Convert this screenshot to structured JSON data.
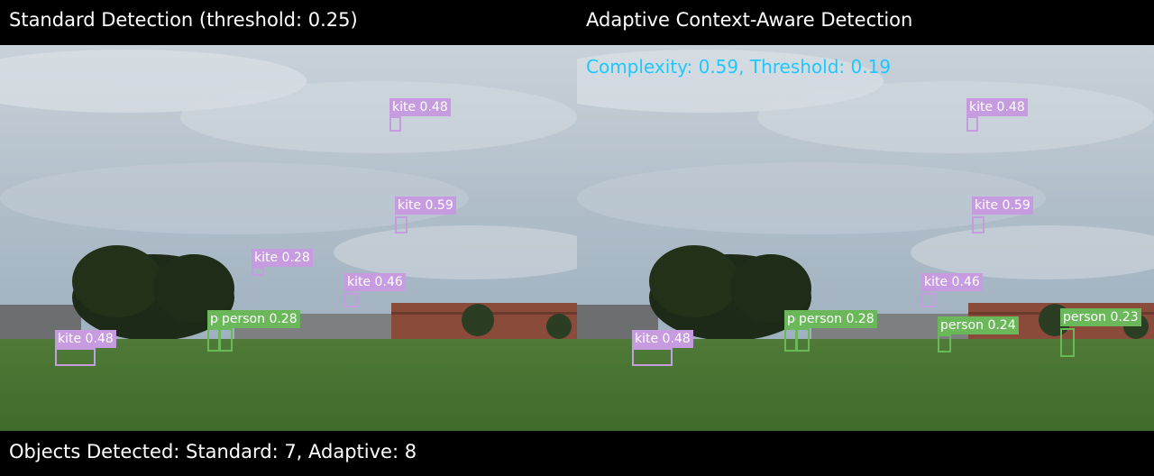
{
  "header": {
    "left_title": "Standard Detection (threshold: 0.25)",
    "right_title": "Adaptive Context-Aware Detection"
  },
  "adaptive_info": {
    "text": "Complexity: 0.59, Threshold: 0.19"
  },
  "footer": {
    "summary": "Objects Detected: Standard: 7, Adaptive: 8"
  },
  "colors": {
    "kite": "#c79be0",
    "person": "#6bb85a",
    "info_text": "#1ec8ff"
  },
  "standard_detections": [
    {
      "label": "kite 0.48",
      "class": "kite"
    },
    {
      "label": "kite 0.59",
      "class": "kite"
    },
    {
      "label": "kite 0.28",
      "class": "kite"
    },
    {
      "label": "kite 0.46",
      "class": "kite"
    },
    {
      "label": "kite 0.48",
      "class": "kite"
    },
    {
      "label": "person 0.28",
      "class": "person"
    },
    {
      "label": "pe",
      "class": "person"
    }
  ],
  "adaptive_detections": [
    {
      "label": "kite 0.48",
      "class": "kite"
    },
    {
      "label": "kite 0.59",
      "class": "kite"
    },
    {
      "label": "kite 0.46",
      "class": "kite"
    },
    {
      "label": "kite 0.48",
      "class": "kite"
    },
    {
      "label": "person 0.28",
      "class": "person"
    },
    {
      "label": "pe",
      "class": "person"
    },
    {
      "label": "person 0.24",
      "class": "person"
    },
    {
      "label": "person 0.23",
      "class": "person"
    }
  ]
}
